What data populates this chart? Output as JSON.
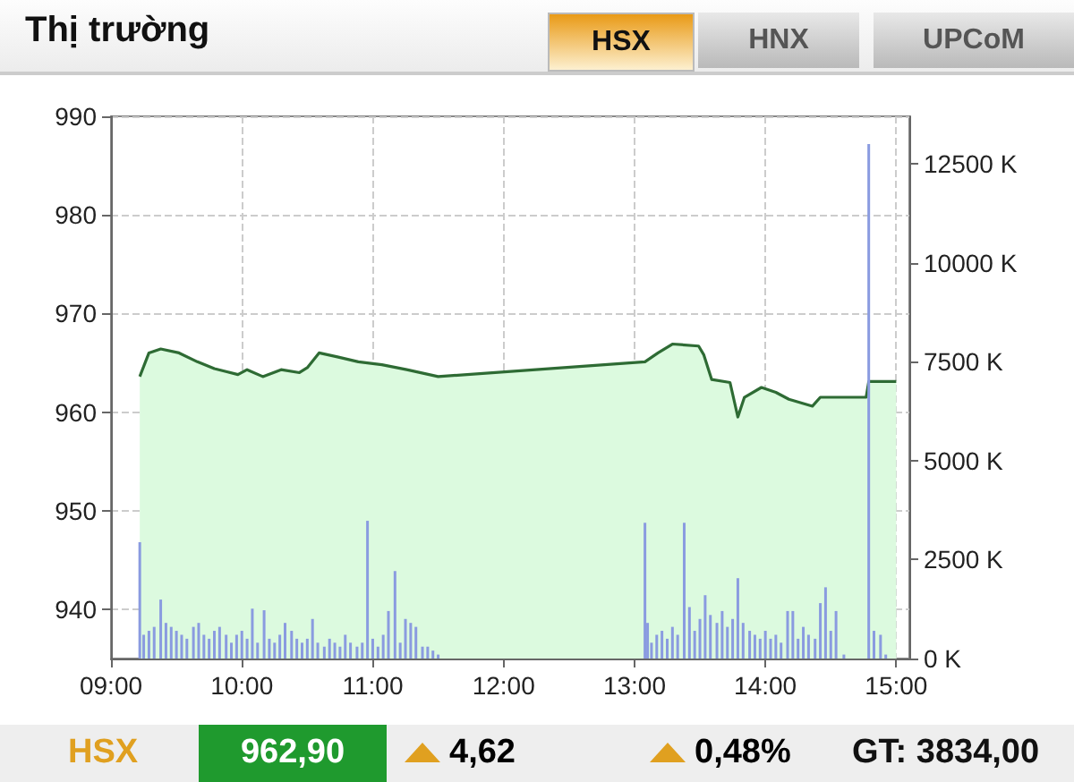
{
  "chart_data": {
    "type": "area",
    "title": "Thị trường",
    "annotations": [
      "HSX",
      "HNX",
      "UPCoM",
      "HSX",
      "962,90",
      "4,62",
      "0,48%",
      "GT: 3834,00"
    ],
    "xlim": [
      9,
      15.1
    ],
    "xticks": [
      {
        "value": 9,
        "label": "09:00"
      },
      {
        "value": 10,
        "label": "10:00"
      },
      {
        "value": 11,
        "label": "11:00"
      },
      {
        "value": 12,
        "label": "12:00"
      },
      {
        "value": 13,
        "label": "13:00"
      },
      {
        "value": 14,
        "label": "14:00"
      },
      {
        "value": 15,
        "label": "15:00"
      }
    ],
    "ylim": [
      935,
      990
    ],
    "yticks": [
      940,
      950,
      960,
      970,
      980,
      990
    ],
    "y2lim": [
      0,
      13700
    ],
    "y2ticks": [
      {
        "value": 0,
        "label": "0 K"
      },
      {
        "value": 2500,
        "label": "2500 K"
      },
      {
        "value": 5000,
        "label": "5000 K"
      },
      {
        "value": 7500,
        "label": "7500 K"
      },
      {
        "value": 10000,
        "label": "10000 K"
      },
      {
        "value": 12500,
        "label": "12500 K"
      }
    ],
    "grid": true,
    "line_style": "dashed",
    "marker": "none",
    "series": [
      {
        "color": "#2e6b34",
        "x": [
          9.22,
          9.29,
          9.38,
          9.52,
          9.66,
          9.79,
          9.97,
          10.04,
          10.16,
          10.3,
          10.44,
          10.5,
          10.59,
          10.73,
          10.89,
          11.07,
          11.26,
          11.5,
          13.08,
          13.18,
          13.29,
          13.49,
          13.53,
          13.59,
          13.73,
          13.79,
          13.84,
          13.97,
          14.08,
          14.18,
          14.36,
          14.42,
          14.77,
          14.79,
          15.0
        ],
        "values": [
          963.6,
          966,
          966.4,
          966,
          965.1,
          964.4,
          963.8,
          964.3,
          963.6,
          964.3,
          964,
          964.5,
          966,
          965.6,
          965.1,
          964.8,
          964.3,
          963.6,
          965.1,
          966,
          966.9,
          966.7,
          965.8,
          963.3,
          963,
          959.5,
          961.5,
          962.5,
          962,
          961.3,
          960.6,
          961.5,
          961.5,
          963.1,
          963.1
        ]
      },
      {
        "type": "bar",
        "axis": "y2",
        "color": "#8a9be0",
        "x": [
          9.22,
          9.25,
          9.29,
          9.33,
          9.38,
          9.42,
          9.46,
          9.5,
          9.54,
          9.58,
          9.63,
          9.67,
          9.71,
          9.75,
          9.79,
          9.83,
          9.88,
          9.92,
          9.96,
          10.0,
          10.04,
          10.08,
          10.12,
          10.17,
          10.21,
          10.25,
          10.29,
          10.33,
          10.38,
          10.42,
          10.46,
          10.5,
          10.54,
          10.58,
          10.63,
          10.67,
          10.71,
          10.75,
          10.79,
          10.83,
          10.88,
          10.92,
          10.96,
          11.0,
          11.04,
          11.08,
          11.12,
          11.17,
          11.21,
          11.25,
          11.29,
          11.33,
          11.38,
          11.42,
          11.46,
          11.5,
          13.08,
          13.1,
          13.13,
          13.17,
          13.21,
          13.25,
          13.29,
          13.33,
          13.38,
          13.42,
          13.46,
          13.5,
          13.54,
          13.58,
          13.63,
          13.67,
          13.71,
          13.75,
          13.79,
          13.83,
          13.88,
          13.92,
          13.96,
          14.0,
          14.04,
          14.08,
          14.12,
          14.17,
          14.21,
          14.25,
          14.29,
          14.33,
          14.38,
          14.42,
          14.46,
          14.5,
          14.54,
          14.6,
          14.79,
          14.83,
          14.88,
          14.92
        ],
        "values": [
          2940,
          600,
          700,
          800,
          1490,
          900,
          800,
          700,
          600,
          500,
          800,
          900,
          600,
          500,
          700,
          800,
          600,
          400,
          600,
          700,
          500,
          1260,
          400,
          1220,
          500,
          400,
          600,
          900,
          700,
          500,
          400,
          500,
          1000,
          400,
          300,
          500,
          400,
          300,
          600,
          400,
          300,
          400,
          3480,
          500,
          300,
          600,
          1200,
          2210,
          400,
          1000,
          900,
          800,
          300,
          300,
          200,
          100,
          3430,
          900,
          400,
          600,
          700,
          500,
          800,
          600,
          3430,
          1300,
          700,
          1000,
          1600,
          1100,
          900,
          1200,
          800,
          1000,
          2030,
          900,
          700,
          600,
          500,
          700,
          500,
          600,
          400,
          1200,
          1200,
          500,
          800,
          600,
          500,
          1400,
          1800,
          700,
          1200,
          100,
          13000,
          700,
          600,
          100
        ]
      }
    ]
  }
}
